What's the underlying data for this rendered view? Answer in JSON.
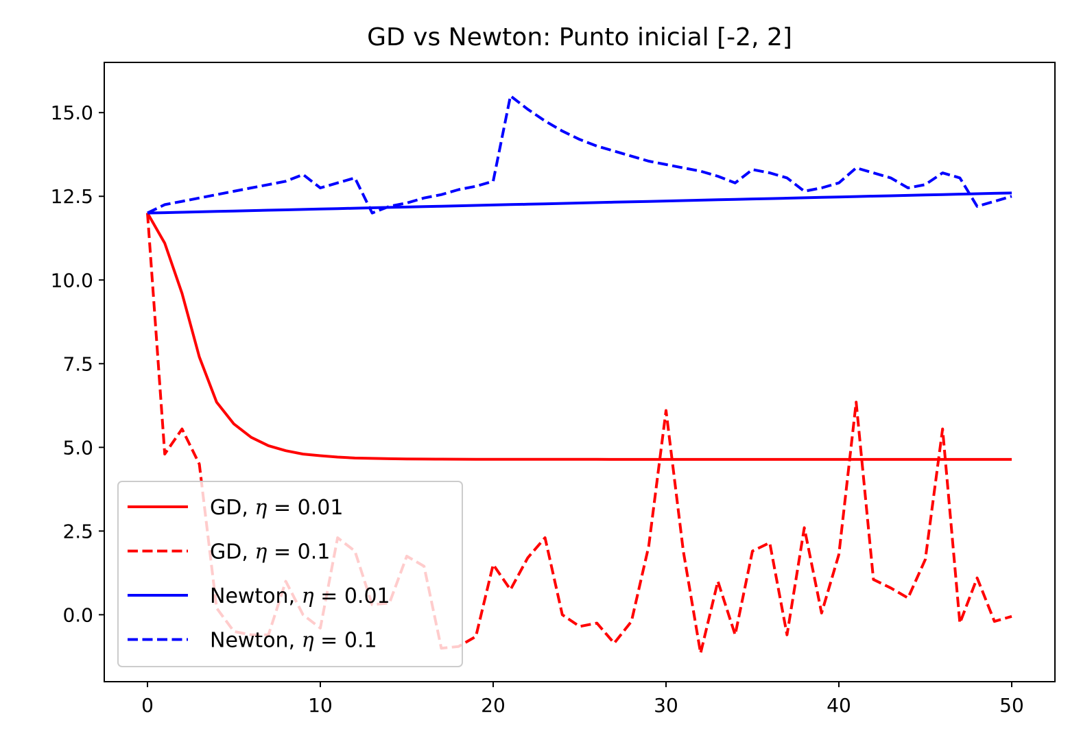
{
  "chart_data": {
    "type": "line",
    "title": "GD vs Newton: Punto inicial [-2, 2]",
    "xlabel": "",
    "ylabel": "",
    "xlim": [
      -2.5,
      52.5
    ],
    "ylim": [
      -2.0,
      16.5
    ],
    "xticks": [
      0,
      10,
      20,
      30,
      40,
      50
    ],
    "xtick_labels": [
      "0",
      "10",
      "20",
      "30",
      "40",
      "50"
    ],
    "yticks": [
      0.0,
      2.5,
      5.0,
      7.5,
      10.0,
      12.5,
      15.0
    ],
    "ytick_labels": [
      "0.0",
      "2.5",
      "5.0",
      "7.5",
      "10.0",
      "12.5",
      "15.0"
    ],
    "grid": false,
    "legend_position": "lower-left",
    "x": [
      0,
      1,
      2,
      3,
      4,
      5,
      6,
      7,
      8,
      9,
      10,
      11,
      12,
      13,
      14,
      15,
      16,
      17,
      18,
      19,
      20,
      21,
      22,
      23,
      24,
      25,
      26,
      27,
      28,
      29,
      30,
      31,
      32,
      33,
      34,
      35,
      36,
      37,
      38,
      39,
      40,
      41,
      42,
      43,
      44,
      45,
      46,
      47,
      48,
      49,
      50
    ],
    "series": [
      {
        "name": "GD, η = 0.01",
        "legend_prefix": "GD, ",
        "legend_var": "η",
        "legend_suffix": " = 0.01",
        "color": "#ff0000",
        "style": "solid",
        "values": [
          12.0,
          11.1,
          9.6,
          7.7,
          6.35,
          5.7,
          5.3,
          5.05,
          4.9,
          4.8,
          4.75,
          4.71,
          4.68,
          4.67,
          4.66,
          4.655,
          4.65,
          4.648,
          4.646,
          4.645,
          4.644,
          4.643,
          4.642,
          4.642,
          4.641,
          4.641,
          4.641,
          4.64,
          4.64,
          4.64,
          4.64,
          4.64,
          4.64,
          4.64,
          4.64,
          4.64,
          4.64,
          4.64,
          4.64,
          4.64,
          4.64,
          4.64,
          4.64,
          4.64,
          4.64,
          4.64,
          4.64,
          4.64,
          4.64,
          4.64,
          4.64
        ]
      },
      {
        "name": "GD, η = 0.1",
        "legend_prefix": "GD, ",
        "legend_var": "η",
        "legend_suffix": " = 0.1",
        "color": "#ff0000",
        "style": "dashed",
        "values": [
          12.0,
          4.8,
          5.55,
          4.5,
          0.2,
          -0.5,
          -0.6,
          -0.6,
          1.0,
          0.0,
          -0.4,
          2.3,
          1.9,
          0.3,
          0.35,
          1.75,
          1.45,
          -1.0,
          -0.95,
          -0.65,
          1.5,
          0.75,
          1.7,
          2.3,
          0.0,
          -0.35,
          -0.25,
          -0.85,
          -0.2,
          2.05,
          6.1,
          1.9,
          -1.15,
          1.0,
          -0.6,
          1.9,
          2.15,
          -0.6,
          2.6,
          0.05,
          1.8,
          6.35,
          1.05,
          0.8,
          0.5,
          1.65,
          5.55,
          -0.25,
          1.1,
          -0.2,
          -0.05
        ]
      },
      {
        "name": "Newton, η = 0.01",
        "legend_prefix": "Newton, ",
        "legend_var": "η",
        "legend_suffix": " = 0.01",
        "color": "#0000ff",
        "style": "solid",
        "values": [
          12.0,
          12.012,
          12.024,
          12.036,
          12.048,
          12.06,
          12.072,
          12.084,
          12.096,
          12.108,
          12.12,
          12.132,
          12.144,
          12.156,
          12.168,
          12.18,
          12.192,
          12.204,
          12.216,
          12.228,
          12.24,
          12.252,
          12.264,
          12.276,
          12.288,
          12.3,
          12.312,
          12.324,
          12.336,
          12.348,
          12.36,
          12.372,
          12.384,
          12.396,
          12.408,
          12.42,
          12.432,
          12.444,
          12.456,
          12.468,
          12.48,
          12.492,
          12.504,
          12.516,
          12.528,
          12.54,
          12.552,
          12.564,
          12.576,
          12.588,
          12.6
        ]
      },
      {
        "name": "Newton, η = 0.1",
        "legend_prefix": "Newton, ",
        "legend_var": "η",
        "legend_suffix": " = 0.1",
        "color": "#0000ff",
        "style": "dashed",
        "values": [
          12.0,
          12.25,
          12.35,
          12.45,
          12.55,
          12.65,
          12.75,
          12.85,
          12.95,
          13.15,
          12.75,
          12.9,
          13.05,
          12.0,
          12.2,
          12.3,
          12.45,
          12.55,
          12.7,
          12.8,
          12.95,
          15.5,
          15.1,
          14.75,
          14.45,
          14.2,
          14.0,
          13.85,
          13.7,
          13.55,
          13.45,
          13.35,
          13.25,
          13.1,
          12.9,
          13.3,
          13.2,
          13.05,
          12.65,
          12.75,
          12.9,
          13.35,
          13.2,
          13.05,
          12.75,
          12.85,
          13.2,
          13.05,
          12.2,
          12.35,
          12.5
        ]
      }
    ]
  }
}
